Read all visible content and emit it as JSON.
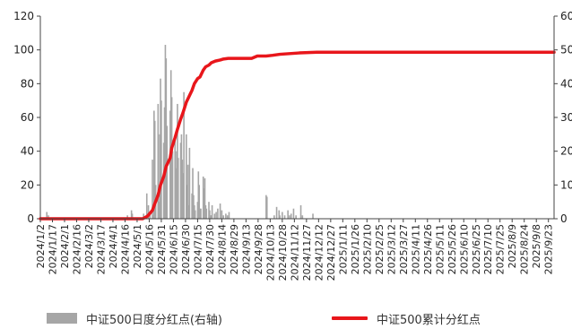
{
  "chart_data": {
    "type": "bar+line",
    "title": "",
    "xlabel": "",
    "ylabel_left": "",
    "ylabel_right": "",
    "x_range": [
      "2024-01-02",
      "2025-09-30"
    ],
    "ylim_left": [
      0,
      120
    ],
    "yticks_left": [
      "0",
      "20",
      "40",
      "60",
      "80",
      "100",
      "120"
    ],
    "ylim_right": [
      0,
      600
    ],
    "yticks_right": [
      "0",
      "100",
      "200",
      "300",
      "400",
      "500",
      "600"
    ],
    "grid": false,
    "legend_position": "bottom",
    "x_tick_labels": [
      "2024/1/2",
      "2024/1/17",
      "2024/2/1",
      "2024/2/16",
      "2024/3/2",
      "2024/3/17",
      "2024/4/1",
      "2024/4/16",
      "2024/5/1",
      "2024/5/16",
      "2024/5/31",
      "2024/6/15",
      "2024/6/30",
      "2024/7/15",
      "2024/7/30",
      "2024/8/14",
      "2024/8/29",
      "2024/9/13",
      "2024/9/28",
      "2024/10/13",
      "2024/10/28",
      "2024/11/12",
      "2024/11/27",
      "2024/12/12",
      "2024/12/27",
      "2025/1/11",
      "2025/1/26",
      "2025/2/10",
      "2025/2/25",
      "2025/3/12",
      "2025/3/27",
      "2025/4/11",
      "2025/4/26",
      "2025/5/11",
      "2025/5/26",
      "2025/6/10",
      "2025/6/25",
      "2025/7/10",
      "2025/7/25",
      "2025/8/9",
      "2025/8/24",
      "2025/9/8",
      "2025/9/23"
    ],
    "x_tick_dates": [
      "2024-01-02",
      "2024-01-17",
      "2024-02-01",
      "2024-02-16",
      "2024-03-02",
      "2024-03-17",
      "2024-04-01",
      "2024-04-16",
      "2024-05-01",
      "2024-05-16",
      "2024-05-31",
      "2024-06-15",
      "2024-06-30",
      "2024-07-15",
      "2024-07-30",
      "2024-08-14",
      "2024-08-29",
      "2024-09-13",
      "2024-09-28",
      "2024-10-13",
      "2024-10-28",
      "2024-11-12",
      "2024-11-27",
      "2024-12-12",
      "2024-12-27",
      "2025-01-11",
      "2025-01-26",
      "2025-02-10",
      "2025-02-25",
      "2025-03-12",
      "2025-03-27",
      "2025-04-11",
      "2025-04-26",
      "2025-05-11",
      "2025-05-26",
      "2025-06-10",
      "2025-06-25",
      "2025-07-10",
      "2025-07-25",
      "2025-08-09",
      "2025-08-24",
      "2025-09-08",
      "2025-09-23"
    ],
    "series": [
      {
        "name": "中证500日度分红点(右轴)",
        "type": "bar",
        "axis": "left",
        "color": "#a6a6a6",
        "x": [
          "2024-01-10",
          "2024-01-12",
          "2024-04-19",
          "2024-04-24",
          "2024-04-25",
          "2024-05-09",
          "2024-05-13",
          "2024-05-15",
          "2024-05-17",
          "2024-05-20",
          "2024-05-21",
          "2024-05-22",
          "2024-05-23",
          "2024-05-24",
          "2024-05-27",
          "2024-05-28",
          "2024-05-29",
          "2024-05-30",
          "2024-05-31",
          "2024-06-03",
          "2024-06-04",
          "2024-06-05",
          "2024-06-06",
          "2024-06-07",
          "2024-06-11",
          "2024-06-12",
          "2024-06-13",
          "2024-06-14",
          "2024-06-17",
          "2024-06-18",
          "2024-06-19",
          "2024-06-20",
          "2024-06-21",
          "2024-06-24",
          "2024-06-25",
          "2024-06-26",
          "2024-06-27",
          "2024-06-28",
          "2024-07-01",
          "2024-07-02",
          "2024-07-03",
          "2024-07-04",
          "2024-07-05",
          "2024-07-08",
          "2024-07-09",
          "2024-07-10",
          "2024-07-11",
          "2024-07-12",
          "2024-07-15",
          "2024-07-16",
          "2024-07-17",
          "2024-07-18",
          "2024-07-19",
          "2024-07-22",
          "2024-07-23",
          "2024-07-24",
          "2024-07-25",
          "2024-07-26",
          "2024-07-29",
          "2024-07-30",
          "2024-07-31",
          "2024-08-01",
          "2024-08-02",
          "2024-08-05",
          "2024-08-07",
          "2024-08-09",
          "2024-08-12",
          "2024-08-14",
          "2024-08-16",
          "2024-08-19",
          "2024-08-21",
          "2024-08-23",
          "2024-10-08",
          "2024-10-09",
          "2024-10-18",
          "2024-10-21",
          "2024-10-24",
          "2024-10-25",
          "2024-10-28",
          "2024-10-31",
          "2024-11-04",
          "2024-11-06",
          "2024-11-08",
          "2024-11-11",
          "2024-11-14",
          "2024-11-20",
          "2024-11-22",
          "2024-12-05"
        ],
        "values": [
          4,
          2,
          2,
          5,
          3,
          3,
          15,
          8,
          4,
          35,
          2,
          64,
          58,
          20,
          68,
          10,
          50,
          83,
          70,
          45,
          66,
          103,
          95,
          55,
          64,
          88,
          72,
          40,
          47,
          30,
          40,
          68,
          36,
          45,
          50,
          35,
          27,
          75,
          50,
          20,
          32,
          8,
          42,
          15,
          30,
          14,
          8,
          5,
          10,
          28,
          20,
          6,
          6,
          25,
          18,
          24,
          8,
          6,
          10,
          5,
          2,
          2,
          8,
          3,
          4,
          6,
          9,
          5,
          2,
          3,
          2,
          4,
          14,
          13,
          2,
          7,
          5,
          2,
          4,
          2,
          5,
          2,
          3,
          6,
          2,
          8,
          2,
          3
        ]
      },
      {
        "name": "中证500累计分红点",
        "type": "line",
        "axis": "right",
        "color": "#e8161b",
        "x": [
          "2024-01-02",
          "2024-05-08",
          "2024-05-14",
          "2024-05-20",
          "2024-05-23",
          "2024-05-27",
          "2024-05-30",
          "2024-06-03",
          "2024-06-06",
          "2024-06-11",
          "2024-06-13",
          "2024-06-17",
          "2024-06-20",
          "2024-06-24",
          "2024-06-27",
          "2024-07-01",
          "2024-07-04",
          "2024-07-08",
          "2024-07-11",
          "2024-07-15",
          "2024-07-18",
          "2024-07-22",
          "2024-07-25",
          "2024-07-29",
          "2024-08-01",
          "2024-08-06",
          "2024-08-12",
          "2024-08-16",
          "2024-08-22",
          "2024-09-01",
          "2024-09-20",
          "2024-09-27",
          "2024-10-08",
          "2024-10-16",
          "2024-10-25",
          "2024-11-06",
          "2024-11-18",
          "2024-11-29",
          "2024-12-10",
          "2024-12-31",
          "2025-09-30"
        ],
        "values": [
          0,
          0,
          8,
          25,
          45,
          70,
          100,
          125,
          155,
          180,
          210,
          240,
          265,
          295,
          315,
          345,
          360,
          380,
          400,
          415,
          420,
          440,
          450,
          455,
          462,
          467,
          470,
          473,
          475,
          475,
          475,
          482,
          482,
          484,
          487,
          489,
          491,
          492,
          493,
          493,
          493
        ]
      }
    ]
  },
  "legend": {
    "bar_label": "中证500日度分红点(右轴)",
    "line_label": "中证500累计分红点"
  }
}
